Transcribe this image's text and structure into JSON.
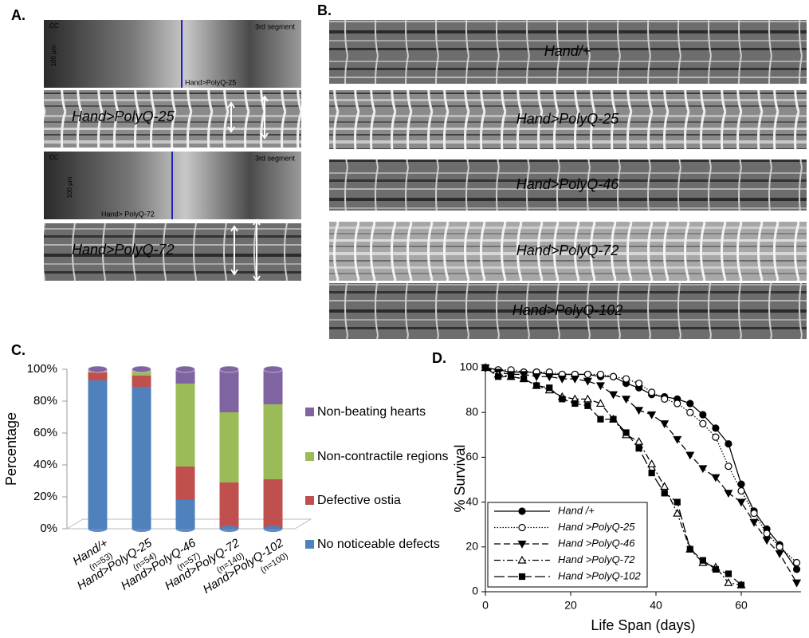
{
  "panel_a": {
    "label": "A.",
    "images": [
      {
        "caption": "Hand>PolyQ-25",
        "segment": "3rd segment",
        "cc": "CC",
        "scale": "100 µm"
      },
      {
        "caption": "Hand> PolyQ-72",
        "segment": "3rd segment",
        "cc": "CC",
        "scale": "100 µm"
      }
    ],
    "kymographs": [
      "Hand>PolyQ-25",
      "Hand>PolyQ-72"
    ]
  },
  "panel_b": {
    "label": "B.",
    "kymographs": [
      "Hand/+",
      "Hand>PolyQ-25",
      "Hand>PolyQ-46",
      "Hand>PolyQ-72",
      "Hand>PolyQ-102"
    ]
  },
  "chart_data": [
    {
      "type": "bar",
      "panel_label": "C.",
      "ylabel": "Percentage",
      "stacked": true,
      "categories": [
        "Hand/+",
        "Hand>PolyQ-25",
        "Hand>PolyQ-46",
        "Hand>PolyQ-72",
        "Hand>PolyQ-102"
      ],
      "sample_sizes": [
        "(n=53)",
        "(n=54)",
        "(n=57)",
        "(n=140)",
        "(n=100)"
      ],
      "ylim": [
        0,
        100
      ],
      "yticks": [
        {
          "value": 0,
          "label": "0%"
        },
        {
          "value": 20,
          "label": "20%"
        },
        {
          "value": 40,
          "label": "40%"
        },
        {
          "value": 60,
          "label": "60%"
        },
        {
          "value": 80,
          "label": "80%"
        },
        {
          "value": 100,
          "label": "100%"
        }
      ],
      "series": [
        {
          "name": "No noticeable defects",
          "color": "#4f81bd",
          "values": [
            93,
            89,
            18,
            0,
            0
          ]
        },
        {
          "name": "Defective ostia",
          "color": "#c0504d",
          "values": [
            5,
            7,
            21,
            29,
            31
          ]
        },
        {
          "name": "Non-contractile regions",
          "color": "#9bbb59",
          "values": [
            1,
            3,
            52,
            44,
            47
          ]
        },
        {
          "name": "Non-beating hearts",
          "color": "#8064a2",
          "values": [
            1,
            1,
            9,
            27,
            22
          ]
        }
      ]
    },
    {
      "type": "line",
      "panel_label": "D.",
      "xlabel": "Life Span (days)",
      "ylabel": "% Survival",
      "xlim": [
        0,
        74
      ],
      "ylim": [
        0,
        100
      ],
      "xticks": [
        0,
        20,
        40,
        60
      ],
      "yticks": [
        0,
        20,
        40,
        60,
        80,
        100
      ],
      "series": [
        {
          "name": "Hand /+",
          "color": "#000000",
          "marker": "circle-filled",
          "dash": "solid",
          "x": [
            0,
            3,
            6,
            9,
            12,
            15,
            18,
            21,
            24,
            27,
            30,
            33,
            36,
            39,
            42,
            45,
            48,
            51,
            54,
            57,
            60,
            63,
            66,
            69,
            73
          ],
          "values": [
            100,
            99,
            98,
            98,
            98,
            97,
            97,
            97,
            97,
            96,
            96,
            93,
            91,
            88,
            87,
            86,
            84,
            79,
            73,
            66,
            48,
            36,
            28,
            21,
            10
          ]
        },
        {
          "name": "Hand >PolyQ-25",
          "color": "#000000",
          "marker": "circle-open",
          "dash": "dotted",
          "x": [
            0,
            3,
            6,
            9,
            12,
            15,
            18,
            21,
            24,
            27,
            30,
            33,
            36,
            39,
            42,
            45,
            48,
            51,
            54,
            57,
            60,
            63,
            66,
            69,
            73
          ],
          "values": [
            100,
            99,
            99,
            98,
            98,
            98,
            97,
            97,
            97,
            97,
            96,
            95,
            93,
            89,
            86,
            84,
            80,
            75,
            69,
            56,
            45,
            35,
            26,
            20,
            13
          ]
        },
        {
          "name": "Hand >PolyQ-46",
          "color": "#000000",
          "marker": "triangle-down-filled",
          "dash": "dashed",
          "x": [
            0,
            3,
            6,
            9,
            12,
            15,
            18,
            21,
            24,
            27,
            30,
            33,
            36,
            39,
            42,
            45,
            48,
            51,
            54,
            57,
            60,
            63,
            66,
            69,
            73
          ],
          "values": [
            100,
            98,
            97,
            97,
            96,
            96,
            95,
            95,
            94,
            92,
            88,
            86,
            81,
            79,
            75,
            68,
            61,
            55,
            51,
            44,
            40,
            31,
            23,
            17,
            4
          ]
        },
        {
          "name": "Hand >PolyQ-72",
          "color": "#000000",
          "marker": "triangle-up-open",
          "dash": "dashdot",
          "x": [
            0,
            3,
            6,
            9,
            12,
            15,
            18,
            21,
            24,
            27,
            30,
            33,
            36,
            39,
            42,
            45,
            48,
            51,
            54,
            57,
            60
          ],
          "values": [
            100,
            97,
            96,
            95,
            92,
            90,
            87,
            86,
            86,
            84,
            77,
            70,
            67,
            57,
            47,
            35,
            19,
            13,
            11,
            4,
            3
          ]
        },
        {
          "name": "Hand >PolyQ-102",
          "color": "#000000",
          "marker": "square-filled",
          "dash": "longdash",
          "x": [
            0,
            3,
            6,
            9,
            12,
            15,
            18,
            21,
            24,
            27,
            30,
            33,
            36,
            39,
            42,
            45,
            48,
            51,
            54,
            57,
            60
          ],
          "values": [
            100,
            96,
            96,
            95,
            92,
            91,
            86,
            84,
            83,
            77,
            77,
            71,
            64,
            53,
            44,
            40,
            19,
            14,
            10,
            8,
            3
          ]
        }
      ]
    }
  ]
}
